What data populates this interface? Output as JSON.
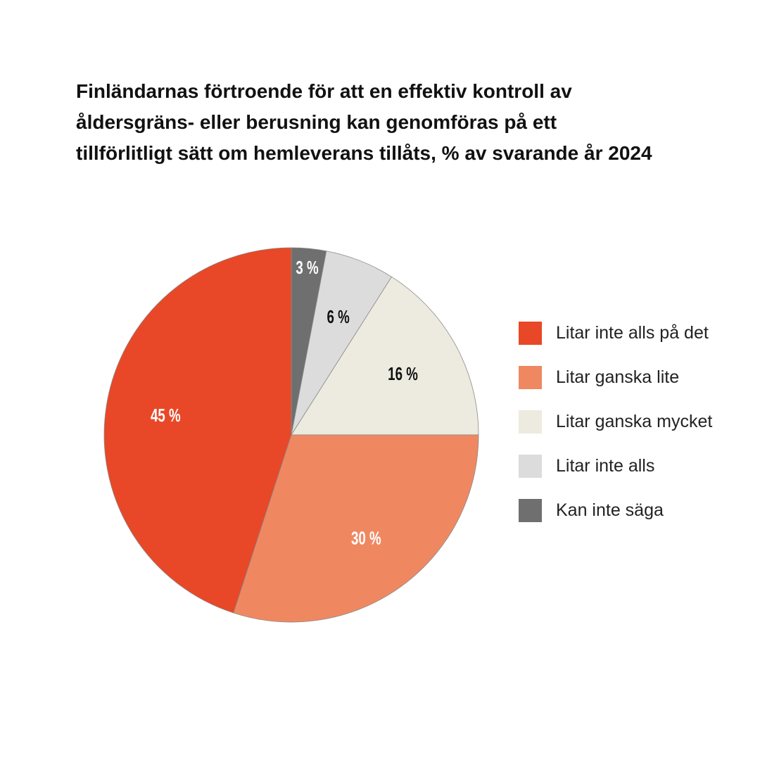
{
  "chart_data": {
    "type": "pie",
    "title_lines": [
      "Finländarnas förtroende för att en effektiv kontroll av",
      "åldersgräns- eller berusning kan genomföras på ett",
      "tillförlitligt sätt om hemleverans tillåts, % av svarande år 2024"
    ],
    "slices": [
      {
        "name": "Kan inte säga",
        "value": 3,
        "label": "3 %",
        "color": "#6f6f6f",
        "label_color": "#ffffff"
      },
      {
        "name": "Litar inte alls",
        "value": 6,
        "label": "6 %",
        "color": "#dcdcdc",
        "label_color": "#111111"
      },
      {
        "name": "Litar ganska mycket",
        "value": 16,
        "label": "16 %",
        "color": "#edeadf",
        "label_color": "#111111"
      },
      {
        "name": "Litar ganska lite",
        "value": 30,
        "label": "30 %",
        "color": "#ef8861",
        "label_color": "#ffffff"
      },
      {
        "name": "Litar inte alls på det",
        "value": 45,
        "label": "45 %",
        "color": "#e84827",
        "label_color": "#ffffff"
      }
    ],
    "start_angle": "12 o'clock",
    "direction": "clockwise",
    "legend": {
      "placement": "right",
      "items": [
        {
          "label": "Litar inte alls på det",
          "color": "#e84827"
        },
        {
          "label": "Litar ganska lite",
          "color": "#ef8861"
        },
        {
          "label": "Litar ganska mycket",
          "color": "#edeadf"
        },
        {
          "label": "Litar inte alls",
          "color": "#dcdcdc"
        },
        {
          "label": "Kan inte säga",
          "color": "#6f6f6f"
        }
      ]
    }
  }
}
